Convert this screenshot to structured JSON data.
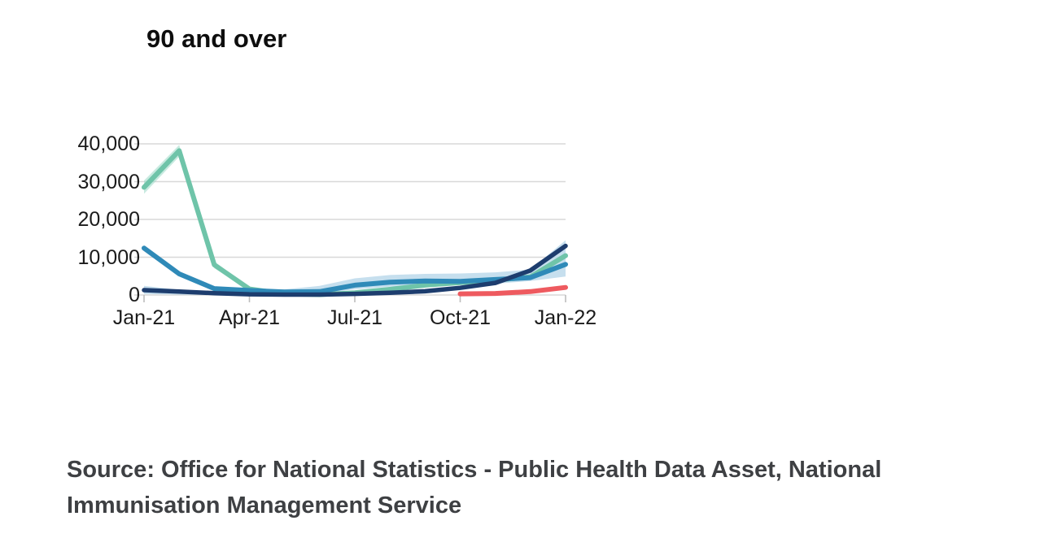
{
  "page": {
    "background": "#ffffff"
  },
  "source": {
    "lines": [
      "Source: Office for National Statistics - Public Health Data Asset, National",
      "Immunisation Management Service"
    ]
  },
  "chart_data": {
    "type": "line",
    "title": "90 and over",
    "x": [
      "Jan-21",
      "Feb-21",
      "Mar-21",
      "Apr-21",
      "May-21",
      "Jun-21",
      "Jul-21",
      "Aug-21",
      "Sep-21",
      "Oct-21",
      "Nov-21",
      "Dec-21",
      "Jan-22"
    ],
    "x_tick_labels": [
      "Jan-21",
      "Apr-21",
      "Jul-21",
      "Oct-21",
      "Jan-22"
    ],
    "x_tick_months": [
      0,
      3,
      6,
      9,
      12
    ],
    "y_ticks": [
      0,
      10000,
      20000,
      30000,
      40000
    ],
    "y_tick_labels": [
      "0",
      "10,000",
      "20,000",
      "30,000",
      "40,000"
    ],
    "ylim": [
      0,
      40000
    ],
    "xlabel": "",
    "ylabel": "",
    "grid": "horizontal",
    "legend_position": "none",
    "colors": {
      "gridline": "#d8d8d8",
      "tick": "#bdbdbd",
      "axis_text": "#1b1b1b",
      "title_text": "#0e0e0e",
      "source_text": "#3e4043"
    },
    "bands": [
      {
        "name": "teal-confidence-band",
        "color": "#a3dccb",
        "opacity": 0.6,
        "upper": [
          30300,
          39700,
          8900,
          2000,
          550,
          300,
          800,
          1700,
          2800,
          3500,
          4200,
          5400,
          11300
        ],
        "lower": [
          26800,
          36600,
          7100,
          1150,
          100,
          0,
          400,
          1250,
          2350,
          3050,
          3600,
          4300,
          9600
        ]
      },
      {
        "name": "blue-confidence-band",
        "color": "#b9d8ea",
        "opacity": 0.82,
        "upper": [
          2400,
          1400,
          1000,
          1100,
          1500,
          2400,
          4400,
          5300,
          5600,
          5700,
          6000,
          6700,
          14500
        ],
        "lower": [
          250,
          100,
          50,
          100,
          250,
          350,
          1500,
          2200,
          2500,
          2600,
          3000,
          3700,
          4900
        ]
      }
    ],
    "series": [
      {
        "name": "teal-line",
        "color": "#6fc4a9",
        "width": 6,
        "values": [
          28500,
          38200,
          8000,
          1600,
          300,
          100,
          600,
          1500,
          2600,
          3300,
          3900,
          4800,
          10400
        ]
      },
      {
        "name": "blue-line",
        "color": "#2f8ab8",
        "width": 6,
        "values": [
          12400,
          5600,
          1700,
          1200,
          800,
          900,
          2600,
          3400,
          3700,
          3600,
          4100,
          4600,
          8100
        ]
      },
      {
        "name": "navy-line",
        "color": "#1d3d6e",
        "width": 5.5,
        "values": [
          1300,
          900,
          500,
          200,
          100,
          100,
          300,
          600,
          1000,
          1900,
          3200,
          6500,
          13000
        ]
      },
      {
        "name": "red-line",
        "color": "#ee5a5f",
        "width": 6,
        "values": [
          null,
          null,
          null,
          null,
          null,
          null,
          null,
          null,
          null,
          300,
          400,
          900,
          2000
        ]
      }
    ]
  }
}
